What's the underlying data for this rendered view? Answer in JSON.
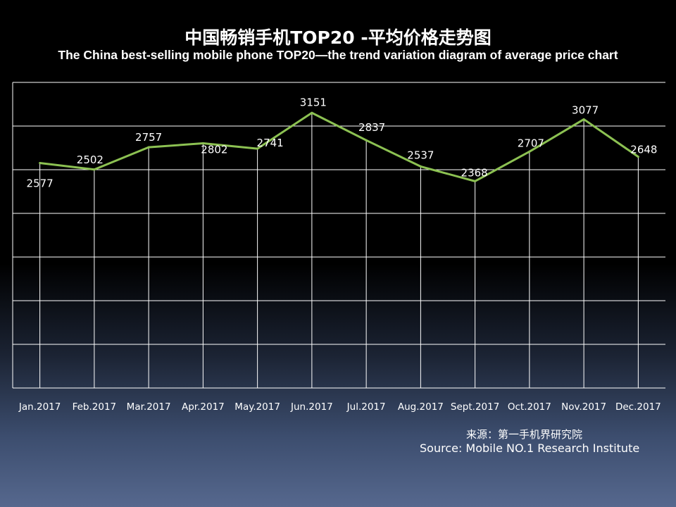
{
  "header": {
    "title_cn": "中国畅销手机TOP20 -平均价格走势图",
    "title_en": "The China best-selling mobile phone TOP20—the trend variation diagram of average price chart"
  },
  "source": {
    "cn": "来源：第一手机界研究院",
    "en": "Source: Mobile NO.1 Research Institute"
  },
  "chart_data": {
    "type": "line",
    "title": "中国畅销手机TOP20 -平均价格走势图",
    "subtitle": "The China best-selling mobile phone TOP20—the trend variation diagram of average price chart",
    "categories": [
      "Jan.2017",
      "Feb.2017",
      "Mar.2017",
      "Apr.2017",
      "May.2017",
      "Jun.2017",
      "Jul.2017",
      "Aug.2017",
      "Sept.2017",
      "Oct.2017",
      "Nov.2017",
      "Dec.2017"
    ],
    "values": [
      2577,
      2502,
      2757,
      2802,
      2741,
      3151,
      2837,
      2537,
      2368,
      2707,
      3077,
      2648
    ],
    "ylim": [
      0,
      3500
    ],
    "gridlines": 7,
    "grid": true,
    "line_color": "#8cc152",
    "grid_color": "#ffffff",
    "legend": "none"
  }
}
